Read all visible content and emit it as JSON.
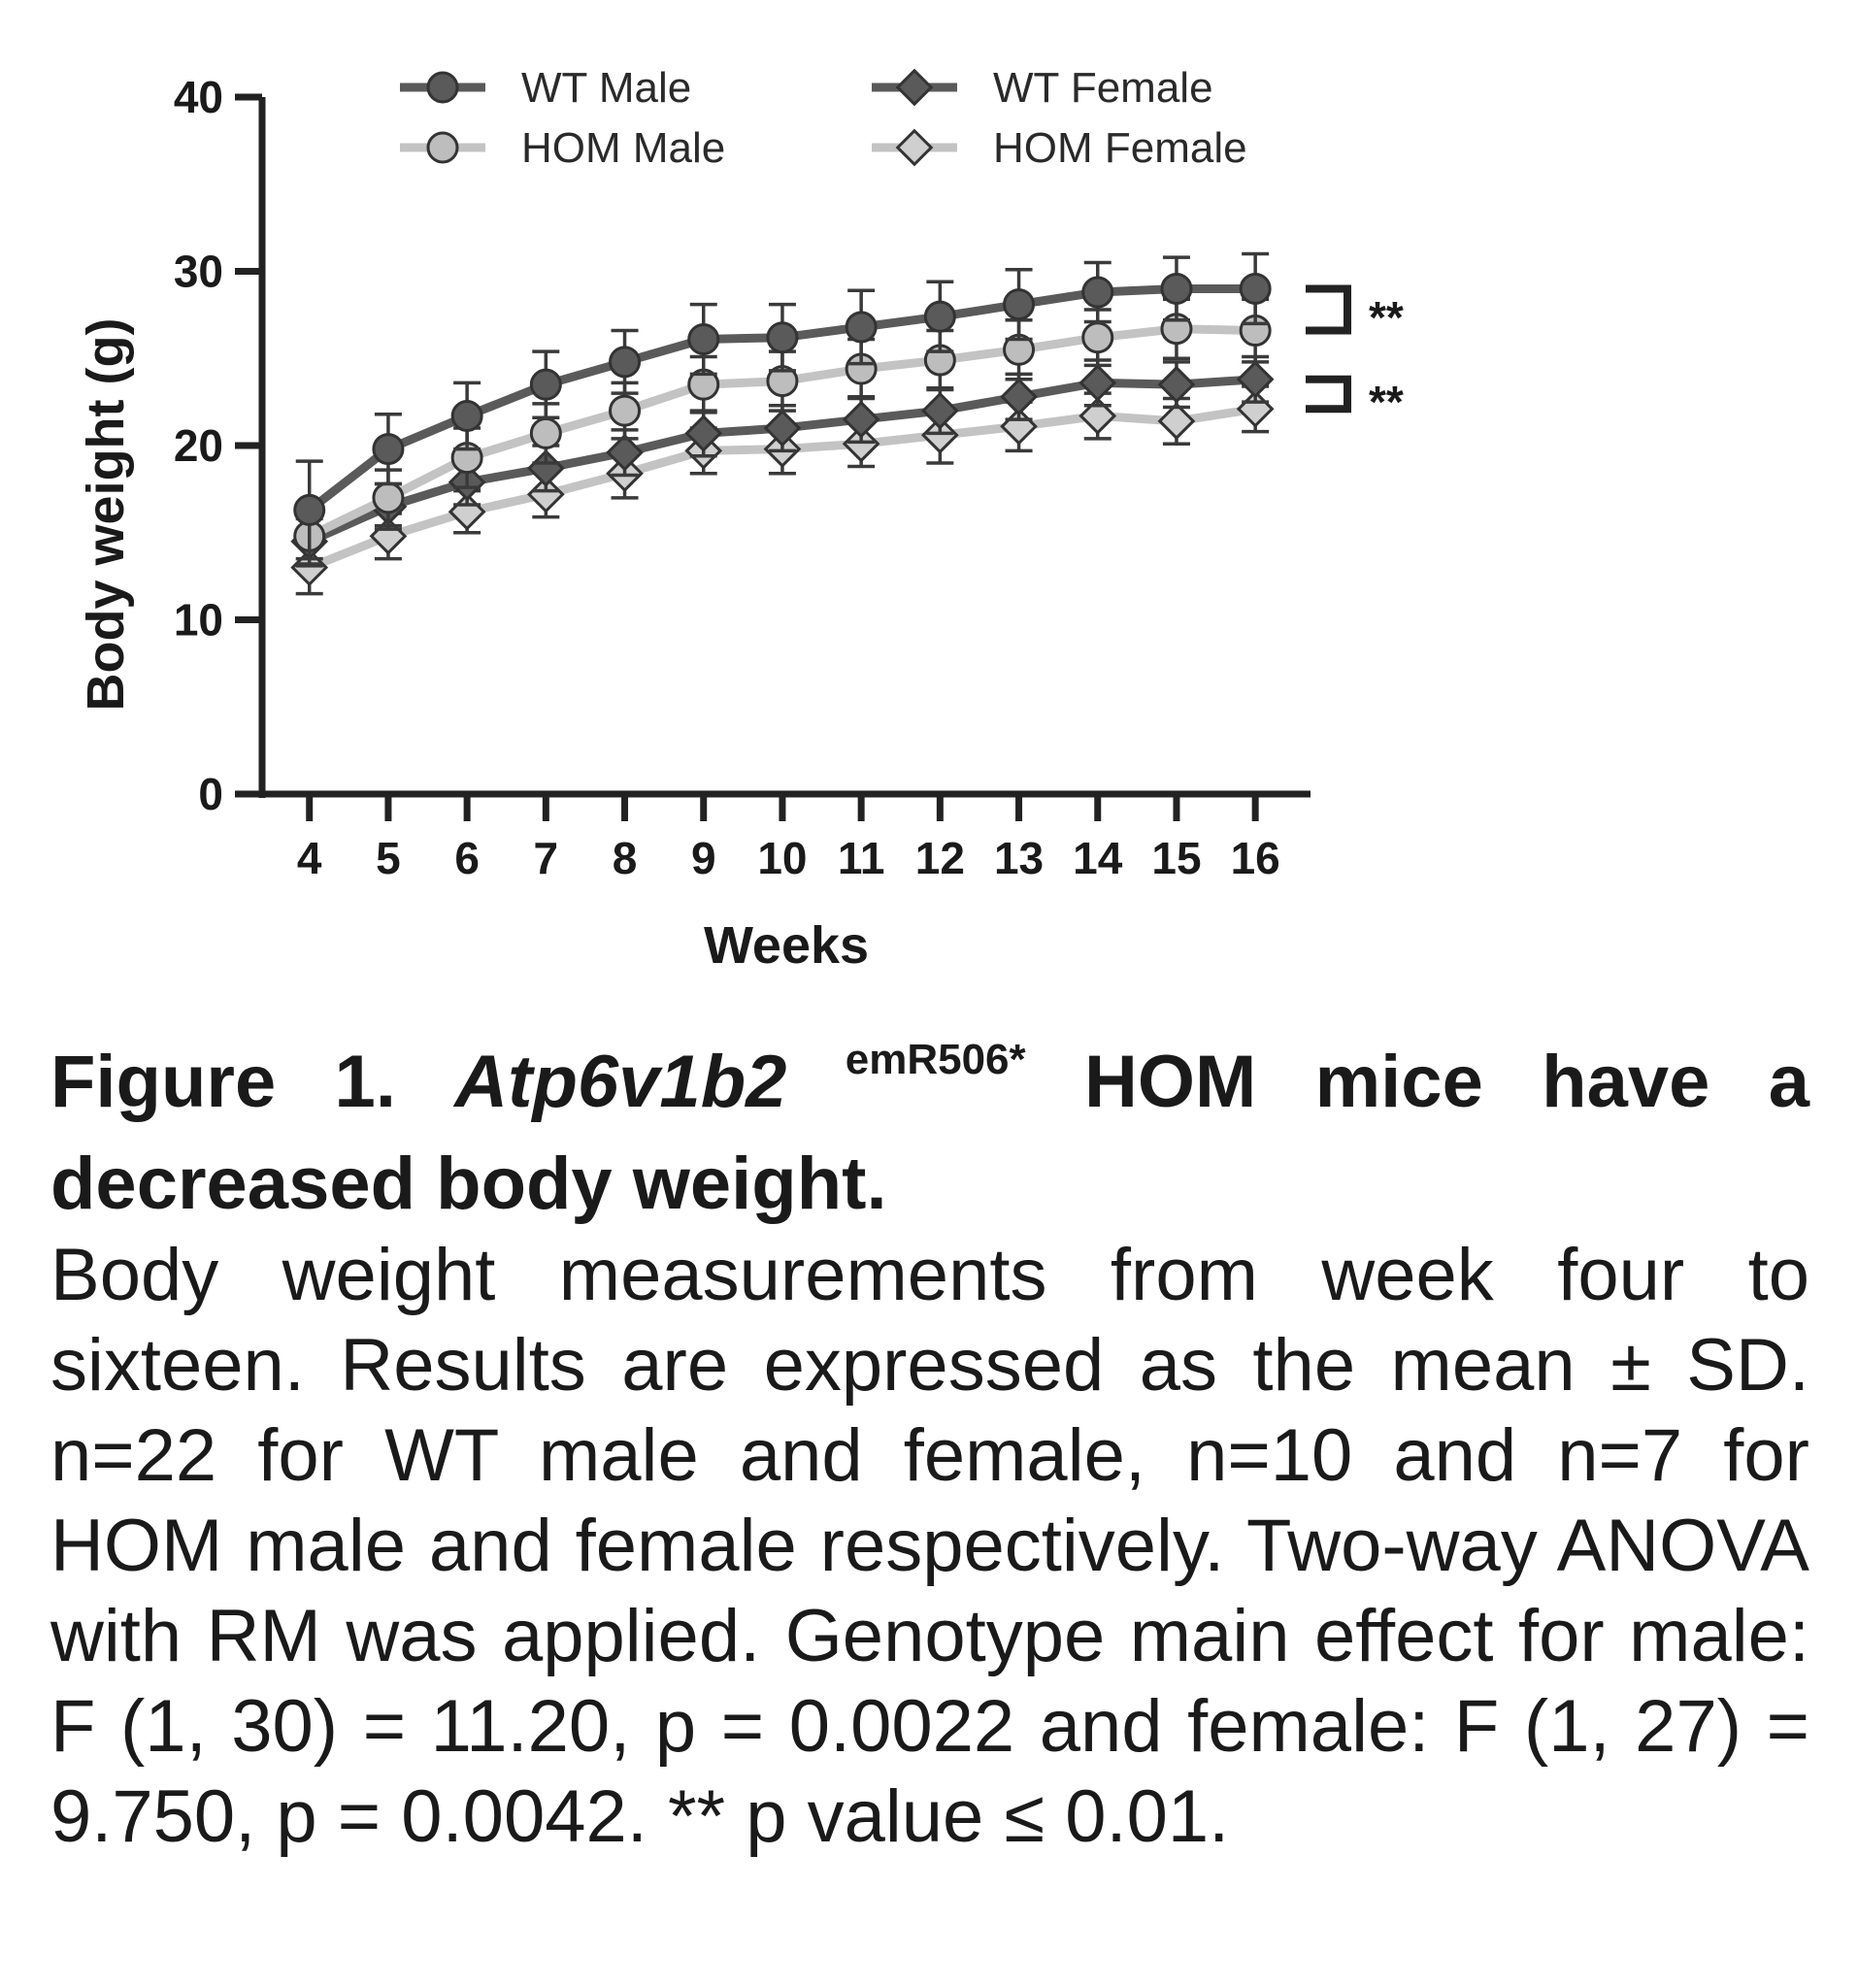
{
  "chart_data": {
    "type": "line",
    "xlabel": "Weeks",
    "ylabel": "Body weight (g)",
    "xlim": [
      3.4,
      16.7
    ],
    "ylim": [
      0,
      40
    ],
    "x": [
      4,
      5,
      6,
      7,
      8,
      9,
      10,
      11,
      12,
      13,
      14,
      15,
      16
    ],
    "x_tick_labels": [
      "4",
      "5",
      "6",
      "7",
      "8",
      "9",
      "10",
      "11",
      "12",
      "13",
      "14",
      "15",
      "16"
    ],
    "y_ticks": [
      0,
      10,
      20,
      30,
      40
    ],
    "y_tick_labels": [
      "0",
      "10",
      "20",
      "30",
      "40"
    ],
    "legend_position": "top",
    "series": [
      {
        "name": "WT Male",
        "marker": "circle",
        "color": "#5a5a5a",
        "fill": "#5a5a5a",
        "values": [
          16.3,
          19.8,
          21.7,
          23.5,
          24.8,
          26.1,
          26.2,
          26.8,
          27.4,
          28.1,
          28.8,
          29.0,
          29.0
        ],
        "sd": [
          2.8,
          2.0,
          1.9,
          1.9,
          1.8,
          2.0,
          1.9,
          2.1,
          2.0,
          2.0,
          1.7,
          1.8,
          2.0
        ]
      },
      {
        "name": "HOM Male",
        "marker": "circle",
        "color": "#c3c3c3",
        "fill": "#bdbdbd",
        "values": [
          14.8,
          17.0,
          19.3,
          20.7,
          22.0,
          23.5,
          23.7,
          24.4,
          24.9,
          25.5,
          26.2,
          26.7,
          26.6
        ],
        "sd": [
          1.7,
          1.6,
          1.7,
          1.7,
          1.6,
          1.6,
          1.7,
          1.7,
          1.7,
          1.7,
          1.6,
          1.7,
          1.8
        ]
      },
      {
        "name": "WT Female",
        "marker": "diamond",
        "color": "#5a5a5a",
        "fill": "#5a5a5a",
        "values": [
          14.5,
          16.5,
          17.9,
          18.7,
          19.6,
          20.7,
          21.0,
          21.5,
          22.0,
          22.8,
          23.6,
          23.5,
          23.8
        ],
        "sd": [
          1.3,
          1.3,
          1.3,
          1.3,
          1.3,
          1.3,
          1.3,
          1.3,
          1.3,
          1.3,
          1.3,
          1.3,
          1.3
        ]
      },
      {
        "name": "HOM Female",
        "marker": "diamond",
        "color": "#c3c3c3",
        "fill": "#cfcfcf",
        "values": [
          13.0,
          14.8,
          16.2,
          17.2,
          18.4,
          19.7,
          19.8,
          20.1,
          20.6,
          21.1,
          21.7,
          21.4,
          22.1
        ],
        "sd": [
          1.5,
          1.3,
          1.2,
          1.3,
          1.4,
          1.3,
          1.4,
          1.3,
          1.6,
          1.4,
          1.3,
          1.3,
          1.3
        ]
      }
    ],
    "annotations": [
      {
        "text": "**",
        "brackets": [
          "WT Male",
          "HOM Male"
        ]
      },
      {
        "text": "**",
        "brackets": [
          "WT Female",
          "HOM Female"
        ]
      }
    ]
  },
  "caption": {
    "title_prefix": "Figure 1.",
    "gene": "Atp6v1b2",
    "allele": "emR506*",
    "title_rest": "HOM mice have a decreased body weight.",
    "body": "Body weight measurements from week four to sixteen. Results are expressed as the mean ± SD. n=22 for WT male and female, n=10 and n=7 for HOM male and female respectively. Two-way ANOVA with RM was applied. Genotype main effect for male: F (1, 30) = 11.20, p = 0.0022 and female: F (1, 27) = 9.750, p = 0.0042.  ** p value ≤ 0.01."
  }
}
